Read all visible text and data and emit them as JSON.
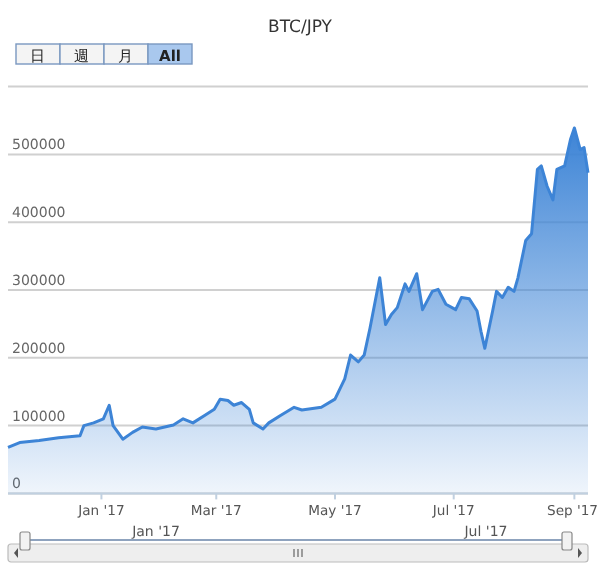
{
  "chart_data": {
    "type": "area",
    "title": "BTC/JPY",
    "color": "#3d84d6",
    "x": [
      "2016-11-14",
      "2016-11-20",
      "2016-11-30",
      "2016-12-10",
      "2016-12-21",
      "2016-12-23",
      "2016-12-28",
      "2017-01-02",
      "2017-01-05",
      "2017-01-07",
      "2017-01-12",
      "2017-01-17",
      "2017-01-22",
      "2017-01-29",
      "2017-02-07",
      "2017-02-12",
      "2017-02-17",
      "2017-02-23",
      "2017-02-28",
      "2017-03-03",
      "2017-03-07",
      "2017-03-10",
      "2017-03-14",
      "2017-03-18",
      "2017-03-20",
      "2017-03-25",
      "2017-03-28",
      "2017-04-03",
      "2017-04-10",
      "2017-04-14",
      "2017-04-24",
      "2017-05-01",
      "2017-05-06",
      "2017-05-09",
      "2017-05-13",
      "2017-05-16",
      "2017-05-19",
      "2017-05-24",
      "2017-05-27",
      "2017-05-30",
      "2017-06-02",
      "2017-06-06",
      "2017-06-08",
      "2017-06-12",
      "2017-06-15",
      "2017-06-20",
      "2017-06-23",
      "2017-06-27",
      "2017-07-02",
      "2017-07-05",
      "2017-07-09",
      "2017-07-13",
      "2017-07-15",
      "2017-07-17",
      "2017-07-21",
      "2017-07-23",
      "2017-07-26",
      "2017-07-29",
      "2017-08-01",
      "2017-08-03",
      "2017-08-07",
      "2017-08-10",
      "2017-08-13",
      "2017-08-15",
      "2017-08-18",
      "2017-08-21",
      "2017-08-23",
      "2017-08-27",
      "2017-08-30",
      "2017-09-01",
      "2017-09-04",
      "2017-09-06",
      "2017-09-08"
    ],
    "values": [
      68000,
      75000,
      78000,
      82000,
      85000,
      100000,
      104000,
      110000,
      130000,
      100000,
      80000,
      90000,
      98000,
      95000,
      101000,
      110000,
      104000,
      115000,
      124000,
      139000,
      137000,
      130000,
      134000,
      124000,
      104000,
      95000,
      104000,
      115000,
      127000,
      123000,
      127000,
      139000,
      169000,
      204000,
      194000,
      204000,
      244000,
      318000,
      249000,
      264000,
      274000,
      309000,
      298000,
      324000,
      271000,
      298000,
      301000,
      279000,
      271000,
      289000,
      287000,
      269000,
      239000,
      214000,
      269000,
      298000,
      289000,
      304000,
      298000,
      318000,
      373000,
      383000,
      478000,
      483000,
      453000,
      433000,
      478000,
      483000,
      522000,
      539000,
      507000,
      510000,
      473000
    ],
    "xlim": [
      "2016-11-14",
      "2017-09-08"
    ],
    "xticks": [
      {
        "value": "2017-01-01",
        "label": "Jan '17"
      },
      {
        "value": "2017-03-01",
        "label": "Mar '17"
      },
      {
        "value": "2017-05-01",
        "label": "May '17"
      },
      {
        "value": "2017-07-01",
        "label": "Jul '17"
      },
      {
        "value": "2017-09-01",
        "label": "Sep '17"
      }
    ],
    "ylim": [
      0,
      600000
    ],
    "yticks": [
      0,
      100000,
      200000,
      300000,
      400000,
      500000,
      {
        "value": 600000,
        "label": null
      }
    ],
    "grid": "y",
    "annotations": [
      "日",
      "週",
      "月",
      "All",
      "Jan '17",
      "Jul '17"
    ]
  }
}
